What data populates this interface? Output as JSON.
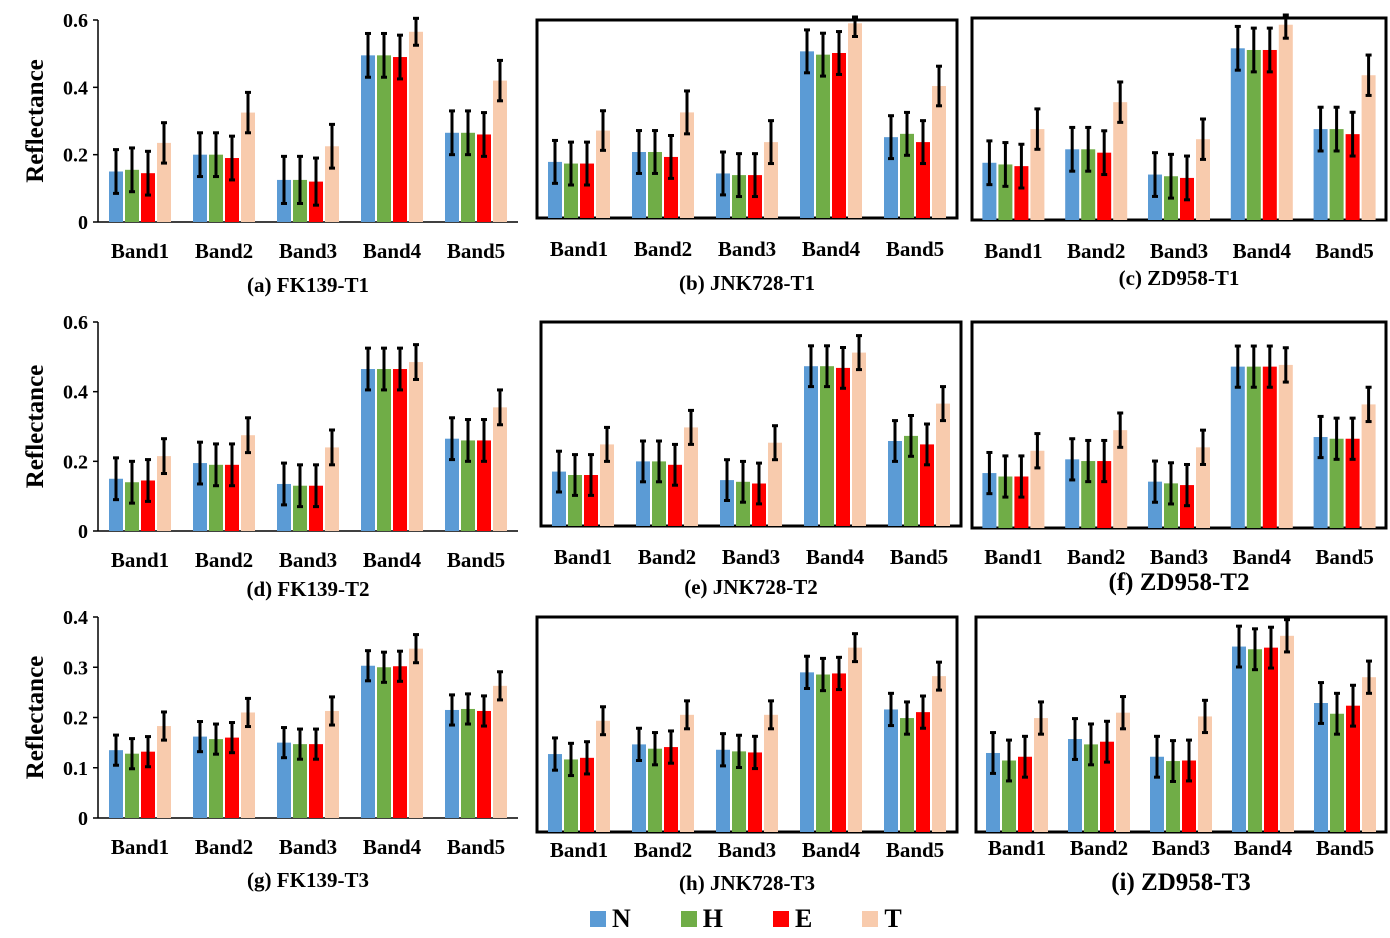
{
  "figure": {
    "legend": [
      {
        "name": "N",
        "color": "#5b9bd5"
      },
      {
        "name": "H",
        "color": "#70ad47"
      },
      {
        "name": "E",
        "color": "#ff0000"
      },
      {
        "name": "T",
        "color": "#f8cbad"
      }
    ]
  },
  "chart_data": [
    {
      "type": "bar",
      "title": "(a) FK139-T1",
      "ylabel": "Reflectance",
      "categories": [
        "Band1",
        "Band2",
        "Band3",
        "Band4",
        "Band5"
      ],
      "ylim": [
        0,
        0.6
      ],
      "yticks": [
        0,
        0.2,
        0.4,
        0.6
      ],
      "ytick_labels": [
        "0",
        "0.2",
        "0.4",
        "0.6"
      ],
      "series": [
        {
          "name": "N",
          "values": [
            0.15,
            0.2,
            0.125,
            0.495,
            0.265
          ],
          "errors": [
            0.065,
            0.065,
            0.07,
            0.065,
            0.065
          ]
        },
        {
          "name": "H",
          "values": [
            0.155,
            0.2,
            0.125,
            0.495,
            0.265
          ],
          "errors": [
            0.065,
            0.065,
            0.07,
            0.065,
            0.065
          ]
        },
        {
          "name": "E",
          "values": [
            0.145,
            0.19,
            0.12,
            0.49,
            0.26
          ],
          "errors": [
            0.065,
            0.065,
            0.07,
            0.065,
            0.065
          ]
        },
        {
          "name": "T",
          "values": [
            0.235,
            0.325,
            0.225,
            0.565,
            0.42
          ],
          "errors": [
            0.06,
            0.06,
            0.065,
            0.04,
            0.06
          ]
        }
      ]
    },
    {
      "type": "bar",
      "title": "(b) JNK728-T1",
      "categories": [
        "Band1",
        "Band2",
        "Band3",
        "Band4",
        "Band5"
      ],
      "ylim": [
        0,
        0.6
      ],
      "series": [
        {
          "name": "N",
          "values": [
            0.17,
            0.2,
            0.135,
            0.505,
            0.245
          ],
          "errors": [
            0.065,
            0.065,
            0.065,
            0.065,
            0.065
          ]
        },
        {
          "name": "H",
          "values": [
            0.165,
            0.2,
            0.13,
            0.495,
            0.255
          ],
          "errors": [
            0.065,
            0.065,
            0.065,
            0.065,
            0.065
          ]
        },
        {
          "name": "E",
          "values": [
            0.165,
            0.185,
            0.13,
            0.5,
            0.23
          ],
          "errors": [
            0.065,
            0.065,
            0.065,
            0.065,
            0.065
          ]
        },
        {
          "name": "T",
          "values": [
            0.265,
            0.32,
            0.23,
            0.59,
            0.4
          ],
          "errors": [
            0.06,
            0.065,
            0.065,
            0.04,
            0.06
          ]
        }
      ]
    },
    {
      "type": "bar",
      "title": "(c) ZD958-T1",
      "categories": [
        "Band1",
        "Band2",
        "Band3",
        "Band4",
        "Band5"
      ],
      "ylim": [
        0,
        0.6
      ],
      "series": [
        {
          "name": "N",
          "values": [
            0.17,
            0.21,
            0.135,
            0.51,
            0.27
          ],
          "errors": [
            0.065,
            0.065,
            0.065,
            0.065,
            0.065
          ]
        },
        {
          "name": "H",
          "values": [
            0.165,
            0.21,
            0.13,
            0.505,
            0.27
          ],
          "errors": [
            0.065,
            0.065,
            0.065,
            0.065,
            0.065
          ]
        },
        {
          "name": "E",
          "values": [
            0.16,
            0.2,
            0.125,
            0.505,
            0.255
          ],
          "errors": [
            0.065,
            0.065,
            0.065,
            0.065,
            0.065
          ]
        },
        {
          "name": "T",
          "values": [
            0.27,
            0.35,
            0.24,
            0.58,
            0.43
          ],
          "errors": [
            0.06,
            0.06,
            0.06,
            0.04,
            0.06
          ]
        }
      ]
    },
    {
      "type": "bar",
      "title": "(d) FK139-T2",
      "ylabel": "Reflectance",
      "categories": [
        "Band1",
        "Band2",
        "Band3",
        "Band4",
        "Band5"
      ],
      "ylim": [
        0,
        0.6
      ],
      "yticks": [
        0,
        0.2,
        0.4,
        0.6
      ],
      "ytick_labels": [
        "0",
        "0.2",
        "0.4",
        "0.6"
      ],
      "series": [
        {
          "name": "N",
          "values": [
            0.15,
            0.195,
            0.135,
            0.465,
            0.265
          ],
          "errors": [
            0.06,
            0.06,
            0.06,
            0.06,
            0.06
          ]
        },
        {
          "name": "H",
          "values": [
            0.14,
            0.19,
            0.13,
            0.465,
            0.26
          ],
          "errors": [
            0.06,
            0.06,
            0.06,
            0.06,
            0.06
          ]
        },
        {
          "name": "E",
          "values": [
            0.145,
            0.19,
            0.13,
            0.465,
            0.26
          ],
          "errors": [
            0.06,
            0.06,
            0.06,
            0.06,
            0.06
          ]
        },
        {
          "name": "T",
          "values": [
            0.215,
            0.275,
            0.24,
            0.485,
            0.355
          ],
          "errors": [
            0.05,
            0.05,
            0.05,
            0.05,
            0.05
          ]
        }
      ]
    },
    {
      "type": "bar",
      "title": "(e) JNK728-T2",
      "categories": [
        "Band1",
        "Band2",
        "Band3",
        "Band4",
        "Band5"
      ],
      "ylim": [
        0,
        0.6
      ],
      "series": [
        {
          "name": "N",
          "values": [
            0.16,
            0.19,
            0.135,
            0.47,
            0.25
          ],
          "errors": [
            0.06,
            0.06,
            0.06,
            0.06,
            0.06
          ]
        },
        {
          "name": "H",
          "values": [
            0.15,
            0.19,
            0.13,
            0.47,
            0.265
          ],
          "errors": [
            0.06,
            0.06,
            0.06,
            0.06,
            0.06
          ]
        },
        {
          "name": "E",
          "values": [
            0.15,
            0.18,
            0.125,
            0.465,
            0.24
          ],
          "errors": [
            0.06,
            0.06,
            0.06,
            0.06,
            0.06
          ]
        },
        {
          "name": "T",
          "values": [
            0.24,
            0.29,
            0.245,
            0.51,
            0.36
          ],
          "errors": [
            0.05,
            0.05,
            0.05,
            0.05,
            0.05
          ]
        }
      ]
    },
    {
      "type": "bar",
      "title": "(f) ZD958-T2",
      "categories": [
        "Band1",
        "Band2",
        "Band3",
        "Band4",
        "Band5"
      ],
      "ylim": [
        0,
        0.6
      ],
      "series": [
        {
          "name": "N",
          "values": [
            0.16,
            0.2,
            0.135,
            0.47,
            0.265
          ],
          "errors": [
            0.06,
            0.06,
            0.06,
            0.06,
            0.06
          ]
        },
        {
          "name": "H",
          "values": [
            0.15,
            0.195,
            0.13,
            0.47,
            0.26
          ],
          "errors": [
            0.06,
            0.06,
            0.06,
            0.06,
            0.06
          ]
        },
        {
          "name": "E",
          "values": [
            0.15,
            0.195,
            0.125,
            0.47,
            0.26
          ],
          "errors": [
            0.06,
            0.06,
            0.06,
            0.06,
            0.06
          ]
        },
        {
          "name": "T",
          "values": [
            0.225,
            0.285,
            0.235,
            0.475,
            0.36
          ],
          "errors": [
            0.05,
            0.05,
            0.05,
            0.05,
            0.05
          ]
        }
      ]
    },
    {
      "type": "bar",
      "title": "(g) FK139-T3",
      "ylabel": "Reflectance",
      "categories": [
        "Band1",
        "Band2",
        "Band3",
        "Band4",
        "Band5"
      ],
      "ylim": [
        0,
        0.4
      ],
      "yticks": [
        0,
        0.1,
        0.2,
        0.3,
        0.4
      ],
      "ytick_labels": [
        "0",
        "0.1",
        "0.2",
        "0.3",
        "0.4"
      ],
      "series": [
        {
          "name": "N",
          "values": [
            0.135,
            0.162,
            0.15,
            0.303,
            0.215
          ],
          "errors": [
            0.03,
            0.03,
            0.03,
            0.03,
            0.03
          ]
        },
        {
          "name": "H",
          "values": [
            0.128,
            0.157,
            0.147,
            0.3,
            0.217
          ],
          "errors": [
            0.03,
            0.03,
            0.03,
            0.03,
            0.03
          ]
        },
        {
          "name": "E",
          "values": [
            0.132,
            0.16,
            0.147,
            0.302,
            0.213
          ],
          "errors": [
            0.03,
            0.03,
            0.03,
            0.03,
            0.03
          ]
        },
        {
          "name": "T",
          "values": [
            0.183,
            0.21,
            0.213,
            0.337,
            0.263
          ],
          "errors": [
            0.028,
            0.028,
            0.028,
            0.028,
            0.028
          ]
        }
      ]
    },
    {
      "type": "bar",
      "title": "(h) JNK728-T3",
      "categories": [
        "Band1",
        "Band2",
        "Band3",
        "Band4",
        "Band5"
      ],
      "ylim": [
        0,
        0.4
      ],
      "series": [
        {
          "name": "N",
          "values": [
            0.145,
            0.163,
            0.153,
            0.297,
            0.228
          ],
          "errors": [
            0.03,
            0.03,
            0.03,
            0.03,
            0.03
          ]
        },
        {
          "name": "H",
          "values": [
            0.135,
            0.155,
            0.15,
            0.293,
            0.212
          ],
          "errors": [
            0.03,
            0.03,
            0.03,
            0.03,
            0.03
          ]
        },
        {
          "name": "E",
          "values": [
            0.138,
            0.158,
            0.148,
            0.295,
            0.223
          ],
          "errors": [
            0.03,
            0.03,
            0.03,
            0.03,
            0.03
          ]
        },
        {
          "name": "T",
          "values": [
            0.207,
            0.218,
            0.218,
            0.343,
            0.29
          ],
          "errors": [
            0.026,
            0.026,
            0.026,
            0.026,
            0.026
          ]
        }
      ]
    },
    {
      "type": "bar",
      "title": "(i) ZD958-T3",
      "categories": [
        "Band1",
        "Band2",
        "Band3",
        "Band4",
        "Band5"
      ],
      "ylim": [
        0,
        0.4
      ],
      "series": [
        {
          "name": "N",
          "values": [
            0.147,
            0.173,
            0.14,
            0.345,
            0.24
          ],
          "errors": [
            0.038,
            0.038,
            0.038,
            0.038,
            0.038
          ]
        },
        {
          "name": "H",
          "values": [
            0.133,
            0.163,
            0.132,
            0.34,
            0.22
          ],
          "errors": [
            0.038,
            0.038,
            0.038,
            0.038,
            0.038
          ]
        },
        {
          "name": "E",
          "values": [
            0.14,
            0.168,
            0.133,
            0.343,
            0.235
          ],
          "errors": [
            0.038,
            0.038,
            0.038,
            0.038,
            0.038
          ]
        },
        {
          "name": "T",
          "values": [
            0.212,
            0.222,
            0.215,
            0.365,
            0.288
          ],
          "errors": [
            0.03,
            0.03,
            0.03,
            0.03,
            0.03
          ]
        }
      ]
    }
  ]
}
